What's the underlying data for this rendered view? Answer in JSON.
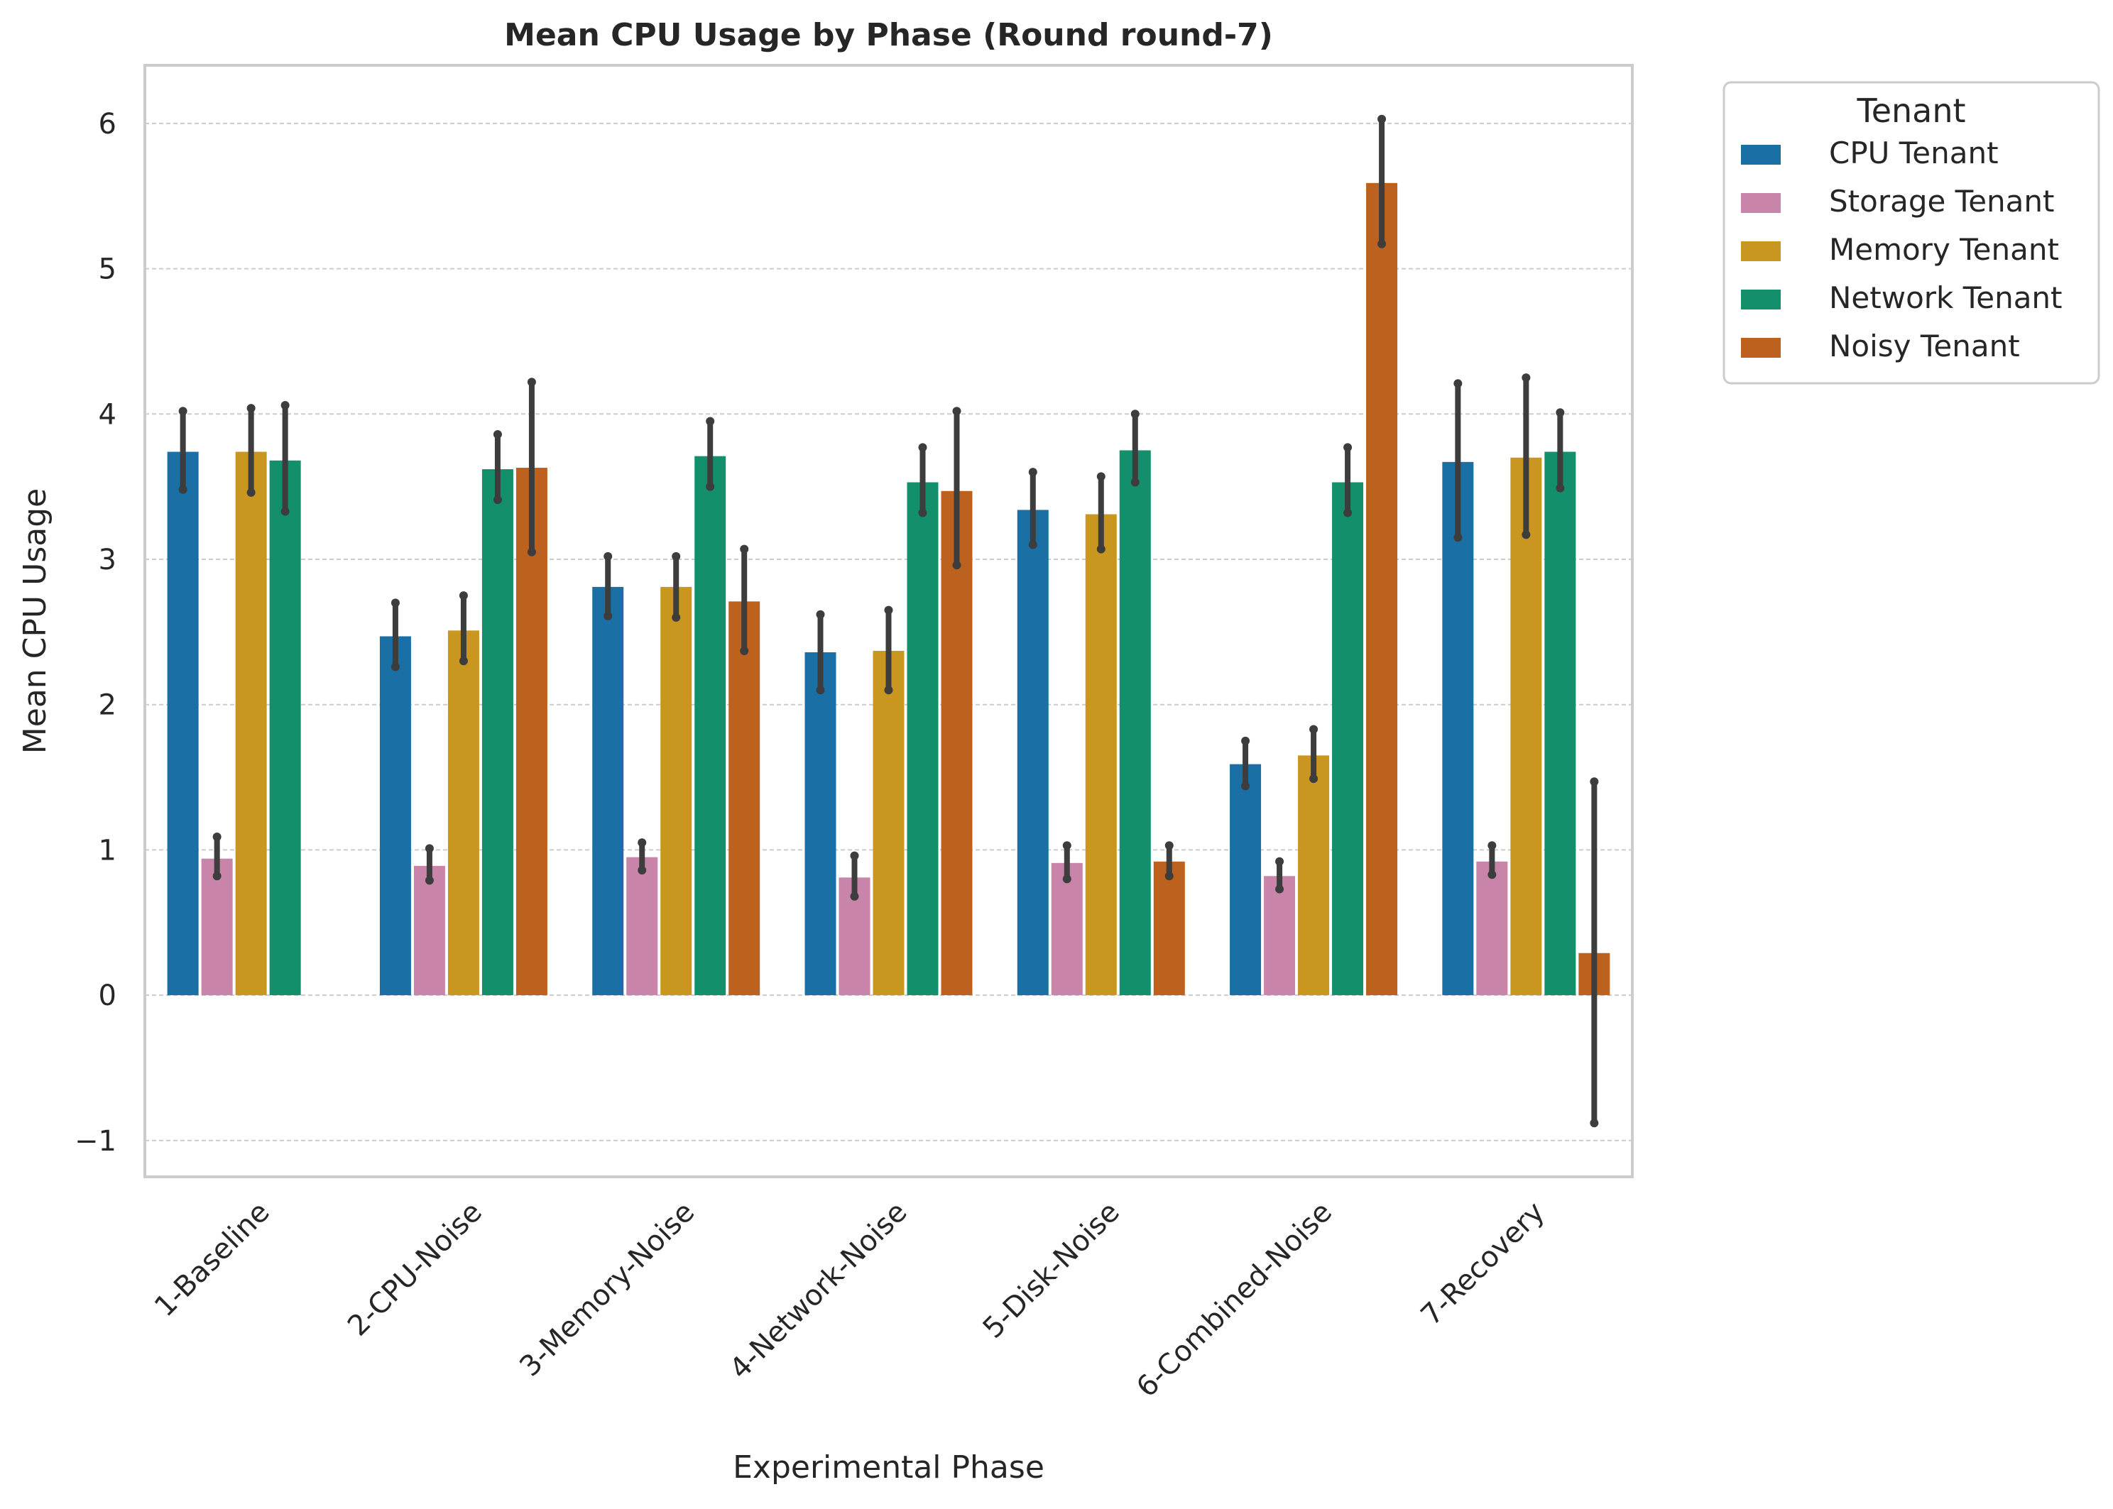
{
  "chart_data": {
    "type": "bar",
    "title": "Mean CPU Usage by Phase (Round round-7)",
    "xlabel": "Experimental Phase",
    "ylabel": "Mean CPU Usage",
    "ylim": [
      -1.25,
      6.4
    ],
    "yticks": [
      -1,
      0,
      1,
      2,
      3,
      4,
      5,
      6
    ],
    "ytick_labels": [
      "−1",
      "0",
      "1",
      "2",
      "3",
      "4",
      "5",
      "6"
    ],
    "grid": true,
    "legend": {
      "title": "Tenant",
      "position": "outside-top-right"
    },
    "categories": [
      "1-Baseline",
      "2-CPU-Noise",
      "3-Memory-Noise",
      "4-Network-Noise",
      "5-Disk-Noise",
      "6-Combined-Noise",
      "7-Recovery"
    ],
    "series": [
      {
        "name": "CPU Tenant",
        "color": "#1a6fa5",
        "values": [
          3.74,
          2.47,
          2.81,
          2.36,
          3.34,
          1.59,
          3.67
        ],
        "err_low": [
          3.48,
          2.26,
          2.61,
          2.1,
          3.1,
          1.44,
          3.15
        ],
        "err_high": [
          4.02,
          2.7,
          3.02,
          2.62,
          3.6,
          1.75,
          4.21
        ]
      },
      {
        "name": "Storage Tenant",
        "color": "#c884a9",
        "values": [
          0.94,
          0.89,
          0.95,
          0.81,
          0.91,
          0.82,
          0.92
        ],
        "err_low": [
          0.82,
          0.79,
          0.86,
          0.68,
          0.8,
          0.73,
          0.83
        ],
        "err_high": [
          1.09,
          1.01,
          1.05,
          0.96,
          1.03,
          0.92,
          1.03
        ]
      },
      {
        "name": "Memory Tenant",
        "color": "#c9961f",
        "values": [
          3.74,
          2.51,
          2.81,
          2.37,
          3.31,
          1.65,
          3.7
        ],
        "err_low": [
          3.46,
          2.3,
          2.6,
          2.1,
          3.07,
          1.49,
          3.17
        ],
        "err_high": [
          4.04,
          2.75,
          3.02,
          2.65,
          3.57,
          1.83,
          4.25
        ]
      },
      {
        "name": "Network Tenant",
        "color": "#138f6c",
        "values": [
          3.68,
          3.62,
          3.71,
          3.53,
          3.75,
          3.53,
          3.74
        ],
        "err_low": [
          3.33,
          3.41,
          3.5,
          3.32,
          3.53,
          3.32,
          3.49
        ],
        "err_high": [
          4.06,
          3.86,
          3.95,
          3.77,
          4.0,
          3.77,
          4.01
        ]
      },
      {
        "name": "Noisy Tenant",
        "color": "#bc611e",
        "values": [
          null,
          3.63,
          2.71,
          3.47,
          0.92,
          5.59,
          0.29
        ],
        "err_low": [
          null,
          3.05,
          2.37,
          2.96,
          0.82,
          5.17,
          -0.88
        ],
        "err_high": [
          null,
          4.22,
          3.07,
          4.02,
          1.03,
          6.03,
          1.47
        ]
      }
    ]
  }
}
